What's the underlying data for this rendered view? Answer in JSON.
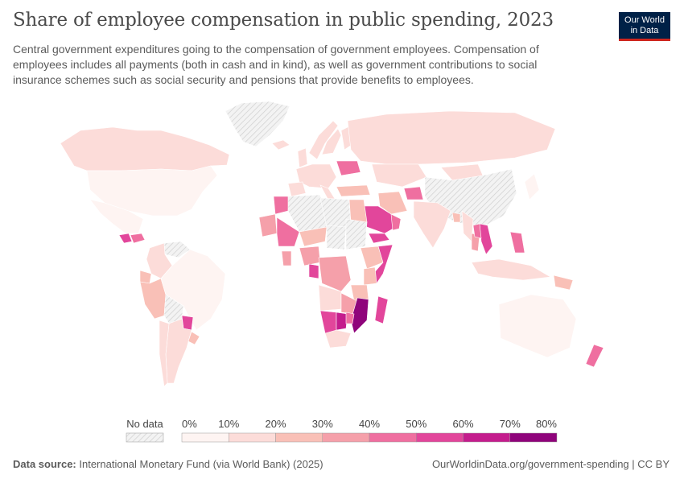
{
  "header": {
    "title": "Share of employee compensation in public spending, 2023",
    "subtitle": "Central government expenditures going to the compensation of government employees. Compensation of employees includes all payments (both in cash and in kind), as well as government contributions to social insurance schemes such as social security and pensions that provide benefits to employees."
  },
  "logo": {
    "line1": "Our World",
    "line2": "in Data"
  },
  "legend": {
    "no_data_label": "No data",
    "ticks": [
      "0%",
      "10%",
      "20%",
      "30%",
      "40%",
      "50%",
      "60%",
      "70%",
      "80%"
    ],
    "colors": [
      "#fef4f2",
      "#fcdcd9",
      "#f9c0b7",
      "#f5a0aa",
      "#ef6fa0",
      "#e2469b",
      "#c41d8d",
      "#8f047b"
    ],
    "no_data_color": "#e6e6e6"
  },
  "footer": {
    "source_label": "Data source:",
    "source_text": "International Monetary Fund (via World Bank) (2025)",
    "url_text": "OurWorldinData.org/government-spending | CC BY"
  },
  "map_data": {
    "regions": [
      {
        "name": "Greenland",
        "share": null
      },
      {
        "name": "Canada",
        "share": 12
      },
      {
        "name": "United States",
        "share": 8
      },
      {
        "name": "Mexico",
        "share": 9
      },
      {
        "name": "Guatemala",
        "share": 50
      },
      {
        "name": "Honduras",
        "share": 45
      },
      {
        "name": "Venezuela",
        "share": null
      },
      {
        "name": "Colombia",
        "share": 10
      },
      {
        "name": "Ecuador",
        "share": 25
      },
      {
        "name": "Peru",
        "share": 22
      },
      {
        "name": "Brazil",
        "share": 8
      },
      {
        "name": "Bolivia",
        "share": null
      },
      {
        "name": "Paraguay",
        "share": 58
      },
      {
        "name": "Argentina",
        "share": 12
      },
      {
        "name": "Chile",
        "share": 15
      },
      {
        "name": "Uruguay",
        "share": 25
      },
      {
        "name": "Iceland",
        "share": 15
      },
      {
        "name": "United Kingdom",
        "share": 18
      },
      {
        "name": "Norway",
        "share": 14
      },
      {
        "name": "Sweden",
        "share": 12
      },
      {
        "name": "Finland",
        "share": 16
      },
      {
        "name": "Western Europe",
        "share": 14
      },
      {
        "name": "Spain",
        "share": 16
      },
      {
        "name": "Italy",
        "share": 15
      },
      {
        "name": "Ukraine",
        "share": 40
      },
      {
        "name": "Turkey",
        "share": 20
      },
      {
        "name": "Russia",
        "share": 12
      },
      {
        "name": "Kazakhstan",
        "share": 10
      },
      {
        "name": "Mongolia",
        "share": 18
      },
      {
        "name": "China",
        "share": null
      },
      {
        "name": "Japan",
        "share": 8
      },
      {
        "name": "Iran",
        "share": 25
      },
      {
        "name": "Afghanistan",
        "share": 45
      },
      {
        "name": "Saudi Arabia",
        "share": 58
      },
      {
        "name": "Yemen",
        "share": 50
      },
      {
        "name": "Oman",
        "share": 40
      },
      {
        "name": "India",
        "share": 15
      },
      {
        "name": "Bangladesh",
        "share": 20
      },
      {
        "name": "Myanmar",
        "share": 15
      },
      {
        "name": "Thailand",
        "share": 30
      },
      {
        "name": "Vietnam",
        "share": 55
      },
      {
        "name": "Laos",
        "share": 40
      },
      {
        "name": "Philippines",
        "share": 40
      },
      {
        "name": "Indonesia",
        "share": 15
      },
      {
        "name": "Papua New Guinea",
        "share": 25
      },
      {
        "name": "Australia",
        "share": 5
      },
      {
        "name": "New Zealand",
        "share": 40
      },
      {
        "name": "Morocco",
        "share": 40
      },
      {
        "name": "Algeria",
        "share": null
      },
      {
        "name": "Libya",
        "share": null
      },
      {
        "name": "Egypt",
        "share": 20
      },
      {
        "name": "Mauritania",
        "share": 30
      },
      {
        "name": "Mali",
        "share": 45
      },
      {
        "name": "Niger",
        "share": 20
      },
      {
        "name": "Chad",
        "share": null
      },
      {
        "name": "Sudan",
        "share": null
      },
      {
        "name": "Ethiopia",
        "share": 20
      },
      {
        "name": "Somalia",
        "share": 50
      },
      {
        "name": "Kenya",
        "share": 25
      },
      {
        "name": "Nigeria",
        "share": 35
      },
      {
        "name": "Ghana",
        "share": 30
      },
      {
        "name": "Gabon",
        "share": 50
      },
      {
        "name": "DR Congo",
        "share": 30
      },
      {
        "name": "Tanzania",
        "share": 20
      },
      {
        "name": "Angola",
        "share": 15
      },
      {
        "name": "Zambia",
        "share": 35
      },
      {
        "name": "Mozambique",
        "share": 70
      },
      {
        "name": "Namibia",
        "share": 50
      },
      {
        "name": "Botswana",
        "share": 60
      },
      {
        "name": "Zimbabwe",
        "share": 45
      },
      {
        "name": "South Africa",
        "share": 15
      },
      {
        "name": "Madagascar",
        "share": 50
      }
    ]
  }
}
